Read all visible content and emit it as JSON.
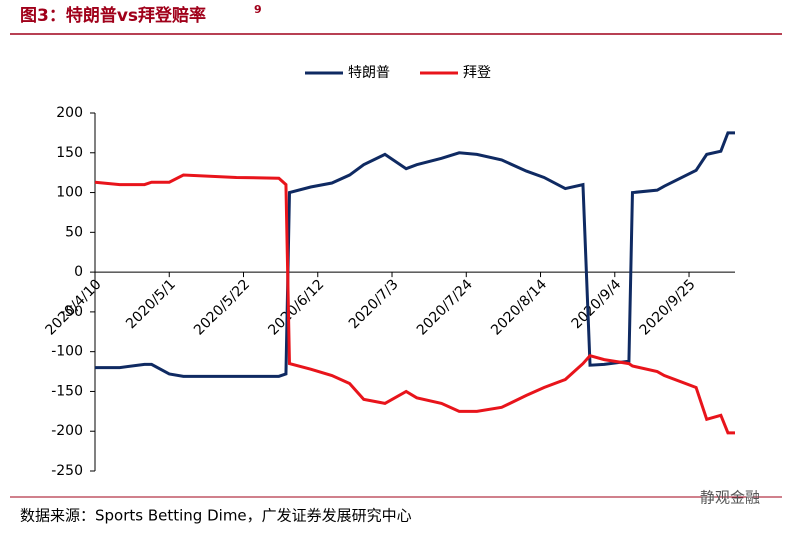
{
  "header": {
    "title": "图3：特朗普vs拜登赔率",
    "footnote_mark": "9"
  },
  "chart_data": {
    "type": "line",
    "x": [
      "2020/4/10",
      "2020/4/17",
      "2020/4/24",
      "2020/4/26",
      "2020/5/1",
      "2020/5/5",
      "2020/5/20",
      "2020/6/1",
      "2020/6/3",
      "2020/6/4",
      "2020/6/10",
      "2020/6/16",
      "2020/6/21",
      "2020/6/25",
      "2020/7/1",
      "2020/7/7",
      "2020/7/10",
      "2020/7/17",
      "2020/7/22",
      "2020/7/27",
      "2020/8/3",
      "2020/8/10",
      "2020/8/15",
      "2020/8/21",
      "2020/8/26",
      "2020/8/28",
      "2020/9/1",
      "2020/9/8",
      "2020/9/9",
      "2020/9/16",
      "2020/9/18",
      "2020/9/27",
      "2020/9/30",
      "2020/10/4",
      "2020/10/6",
      "2020/10/8"
    ],
    "series": [
      {
        "name": "特朗普",
        "color": "#0f2a62",
        "values": [
          -120,
          -120,
          -116,
          -116,
          -128,
          -131,
          -131,
          -131,
          -128,
          100,
          107,
          112,
          122,
          135,
          148,
          130,
          135,
          143,
          150,
          148,
          141,
          127,
          119,
          105,
          110,
          -117,
          -116,
          -112,
          100,
          103,
          108,
          128,
          148,
          152,
          175,
          175
        ]
      },
      {
        "name": "拜登",
        "color": "#e8141b",
        "values": [
          113,
          110,
          110,
          113,
          113,
          122,
          119,
          118,
          110,
          -115,
          -122,
          -130,
          -140,
          -160,
          -165,
          -150,
          -158,
          -165,
          -175,
          -175,
          -170,
          -155,
          -145,
          -135,
          -115,
          -105,
          -110,
          -115,
          -118,
          -125,
          -130,
          -145,
          -185,
          -180,
          -202,
          -202
        ]
      }
    ],
    "xlim": [
      "2020/4/10",
      "2020/10/8"
    ],
    "xticks": [
      "2020/4/10",
      "2020/5/1",
      "2020/5/22",
      "2020/6/12",
      "2020/7/3",
      "2020/7/24",
      "2020/8/14",
      "2020/9/4",
      "2020/9/25"
    ],
    "ylim": [
      -250,
      200
    ],
    "yticks": [
      -250,
      -200,
      -150,
      -100,
      -50,
      0,
      50,
      100,
      150,
      200
    ],
    "legend": "top"
  },
  "footer": {
    "source": "数据来源：Sports Betting Dime，广发证券发展研究中心",
    "watermark": "静观金融"
  }
}
